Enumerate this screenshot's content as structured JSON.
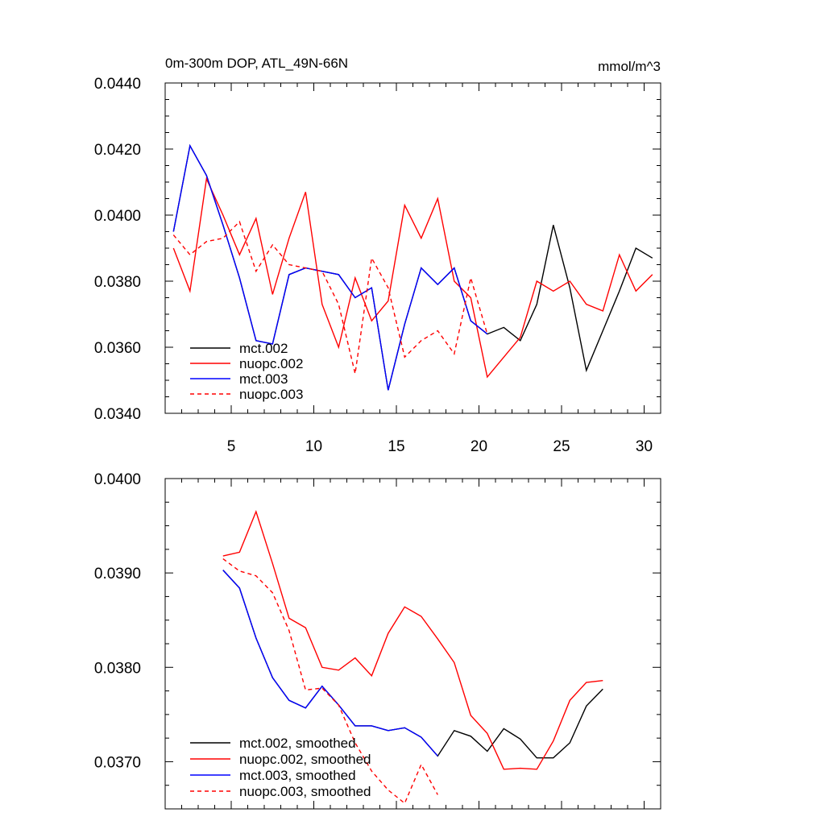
{
  "chart_data": [
    {
      "type": "line",
      "title": "0m-300m DOP, ATL_49N-66N",
      "units": "mmol/m^3",
      "xlim": [
        1,
        31
      ],
      "ylim": [
        0.034,
        0.044
      ],
      "x_ticks": [
        5,
        10,
        15,
        20,
        25,
        30
      ],
      "x_tick_labels": [
        "5",
        "10",
        "15",
        "20",
        "25",
        "30"
      ],
      "y_ticks": [
        0.034,
        0.036,
        0.038,
        0.04,
        0.042,
        0.044
      ],
      "y_tick_labels": [
        "0.0340",
        "0.0360",
        "0.0380",
        "0.0400",
        "0.0420",
        "0.0440"
      ],
      "legend_position": "bottom-left",
      "series": [
        {
          "name": "mct.002",
          "color": "#000000",
          "dash": "solid",
          "x": [
            1.5,
            2.5,
            3.5,
            4.5,
            5.5,
            6.5,
            7.5,
            8.5,
            9.5,
            10.5,
            11.5,
            12.5,
            13.5,
            14.5,
            15.5,
            16.5,
            17.5,
            18.5,
            19.5,
            20.5,
            21.5,
            22.5,
            23.5,
            24.5,
            25.5,
            26.5,
            27.5,
            28.5,
            29.5,
            30.5
          ],
          "values": [
            0.0395,
            0.0421,
            0.0412,
            0.0397,
            0.0381,
            0.0362,
            0.0361,
            0.0382,
            0.0384,
            0.0383,
            0.0382,
            0.0375,
            0.0378,
            0.0347,
            0.0367,
            0.0384,
            0.0379,
            0.0384,
            0.0368,
            0.0364,
            0.0366,
            0.0362,
            0.0373,
            0.0397,
            0.0378,
            0.0353,
            0.0365,
            0.0377,
            0.039,
            0.0387
          ]
        },
        {
          "name": "nuopc.002",
          "color": "#ff0000",
          "dash": "solid",
          "x": [
            1.5,
            2.5,
            3.5,
            4.5,
            5.5,
            6.5,
            7.5,
            8.5,
            9.5,
            10.5,
            11.5,
            12.5,
            13.5,
            14.5,
            15.5,
            16.5,
            17.5,
            18.5,
            19.5,
            20.5,
            21.5,
            22.5,
            23.5,
            24.5,
            25.5,
            26.5,
            27.5,
            28.5,
            29.5,
            30.5
          ],
          "values": [
            0.039,
            0.0377,
            0.0411,
            0.04,
            0.0388,
            0.0399,
            0.0376,
            0.0393,
            0.0407,
            0.0373,
            0.036,
            0.0381,
            0.0368,
            0.0374,
            0.0403,
            0.0393,
            0.0405,
            0.038,
            0.0375,
            0.0351,
            0.0357,
            0.0363,
            0.038,
            0.0377,
            0.038,
            0.0373,
            0.0371,
            0.0388,
            0.0377,
            0.0382
          ]
        },
        {
          "name": "mct.003",
          "color": "#0000ff",
          "dash": "solid",
          "x": [
            1.5,
            2.5,
            3.5,
            4.5,
            5.5,
            6.5,
            7.5,
            8.5,
            9.5,
            10.5,
            11.5,
            12.5,
            13.5,
            14.5,
            15.5,
            16.5,
            17.5,
            18.5,
            19.5,
            20.5
          ],
          "values": [
            0.0395,
            0.0421,
            0.0412,
            0.0397,
            0.0381,
            0.0362,
            0.0361,
            0.0382,
            0.0384,
            0.0383,
            0.0382,
            0.0375,
            0.0378,
            0.0347,
            0.0367,
            0.0384,
            0.0379,
            0.0384,
            0.0368,
            0.0364
          ]
        },
        {
          "name": "nuopc.003",
          "color": "#ff0000",
          "dash": "dashed",
          "x": [
            1.5,
            2.5,
            3.5,
            4.5,
            5.5,
            6.5,
            7.5,
            8.5,
            9.5,
            10.5,
            11.5,
            12.5,
            13.5,
            14.5,
            15.5,
            16.5,
            17.5,
            18.5,
            19.5,
            20.5
          ],
          "values": [
            0.0394,
            0.0388,
            0.0392,
            0.0393,
            0.0398,
            0.0383,
            0.0391,
            0.0385,
            0.0384,
            0.0383,
            0.0373,
            0.0352,
            0.0387,
            0.0378,
            0.0357,
            0.0362,
            0.0365,
            0.0358,
            0.0381,
            0.0364
          ]
        }
      ]
    },
    {
      "type": "line",
      "title": "",
      "xlim": [
        1,
        31
      ],
      "ylim": [
        0.0365,
        0.04
      ],
      "x_ticks": [
        5,
        10,
        15,
        20,
        25,
        30
      ],
      "x_tick_labels": [],
      "y_ticks": [
        0.037,
        0.038,
        0.039,
        0.04
      ],
      "y_tick_labels": [
        "0.0370",
        "0.0380",
        "0.0390",
        "0.0400"
      ],
      "legend_position": "bottom-left",
      "series": [
        {
          "name": "mct.002, smoothed",
          "color": "#000000",
          "dash": "solid",
          "x": [
            4.5,
            5.5,
            6.5,
            7.5,
            8.5,
            9.5,
            10.5,
            11.5,
            12.5,
            13.5,
            14.5,
            15.5,
            16.5,
            17.5,
            18.5,
            19.5,
            20.5,
            21.5,
            22.5,
            23.5,
            24.5,
            25.5,
            26.5,
            27.5
          ],
          "values": [
            0.03903,
            0.03884,
            0.03831,
            0.03789,
            0.03765,
            0.03757,
            0.0378,
            0.0376,
            0.03738,
            0.03738,
            0.03733,
            0.03736,
            0.03726,
            0.03706,
            0.03733,
            0.03727,
            0.03711,
            0.03735,
            0.03724,
            0.03704,
            0.03704,
            0.0372,
            0.03759,
            0.03777
          ]
        },
        {
          "name": "nuopc.002, smoothed",
          "color": "#ff0000",
          "dash": "solid",
          "x": [
            4.5,
            5.5,
            6.5,
            7.5,
            8.5,
            9.5,
            10.5,
            11.5,
            12.5,
            13.5,
            14.5,
            15.5,
            16.5,
            17.5,
            18.5,
            19.5,
            20.5,
            21.5,
            22.5,
            23.5,
            24.5,
            25.5,
            26.5,
            27.5
          ],
          "values": [
            0.03918,
            0.03922,
            0.03965,
            0.0391,
            0.03852,
            0.03842,
            0.038,
            0.03797,
            0.0381,
            0.03791,
            0.03836,
            0.03864,
            0.03854,
            0.0383,
            0.03805,
            0.03749,
            0.0373,
            0.03692,
            0.03693,
            0.03692,
            0.03722,
            0.03765,
            0.03784,
            0.03786
          ]
        },
        {
          "name": "mct.003, smoothed",
          "color": "#0000ff",
          "dash": "solid",
          "x": [
            4.5,
            5.5,
            6.5,
            7.5,
            8.5,
            9.5,
            10.5,
            11.5,
            12.5,
            13.5,
            14.5,
            15.5,
            16.5,
            17.5
          ],
          "values": [
            0.03903,
            0.03884,
            0.03831,
            0.03789,
            0.03765,
            0.03757,
            0.0378,
            0.0376,
            0.03738,
            0.03738,
            0.03733,
            0.03736,
            0.03726,
            0.03706
          ]
        },
        {
          "name": "nuopc.003, smoothed",
          "color": "#ff0000",
          "dash": "dashed",
          "x": [
            4.5,
            5.5,
            6.5,
            7.5,
            8.5,
            9.5,
            10.5,
            11.5,
            12.5,
            13.5,
            14.5,
            15.5,
            16.5,
            17.5
          ],
          "values": [
            0.03915,
            0.03902,
            0.03897,
            0.03879,
            0.03839,
            0.03776,
            0.03778,
            0.0376,
            0.0372,
            0.0369,
            0.0367,
            0.03656,
            0.03697,
            0.03665
          ]
        }
      ]
    }
  ]
}
